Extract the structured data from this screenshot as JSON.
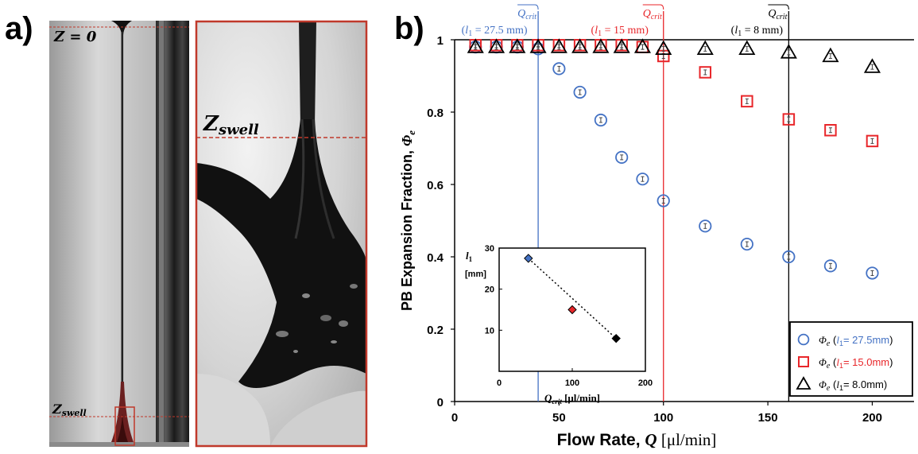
{
  "panel_labels": {
    "a": "a)",
    "b": "b)"
  },
  "micrograph": {
    "z0_label": "Z = 0",
    "zswell_label": "Z",
    "zswell_sub": "swell",
    "zoom_label": "Z",
    "zoom_sub": "swell"
  },
  "chart_data": [
    {
      "type": "scatter",
      "title": "",
      "xlabel": "Flow Rate, Q [μl/min]",
      "ylabel": "PB Expansion Fraction, Φe",
      "xlim": [
        0,
        220
      ],
      "ylim": [
        0,
        1
      ],
      "xticks": [
        0,
        50,
        100,
        150,
        200
      ],
      "yticks": [
        0,
        0.2,
        0.4,
        0.6,
        0.8,
        1
      ],
      "legend_position": "bottom-right",
      "series": [
        {
          "name": "Φe (l1= 27.5mm)",
          "marker": "circle",
          "color": "#4472C4",
          "x": [
            10,
            20,
            30,
            40,
            50,
            60,
            70,
            80,
            90,
            100,
            120,
            140,
            160,
            180,
            200
          ],
          "y": [
            0.98,
            0.98,
            0.98,
            0.975,
            0.92,
            0.855,
            0.778,
            0.675,
            0.615,
            0.555,
            0.485,
            0.435,
            0.4,
            0.375,
            0.355
          ]
        },
        {
          "name": "Φe (l1= 15.0mm)",
          "marker": "square",
          "color": "#E8262A",
          "x": [
            10,
            20,
            30,
            40,
            50,
            60,
            70,
            80,
            90,
            100,
            120,
            140,
            160,
            180,
            200
          ],
          "y": [
            0.985,
            0.985,
            0.985,
            0.985,
            0.985,
            0.985,
            0.985,
            0.985,
            0.98,
            0.955,
            0.91,
            0.83,
            0.78,
            0.75,
            0.72
          ]
        },
        {
          "name": "Φe (l1= 8.0mm)",
          "marker": "triangle",
          "color": "#000000",
          "x": [
            10,
            20,
            30,
            40,
            50,
            60,
            70,
            80,
            90,
            100,
            120,
            140,
            160,
            180,
            200
          ],
          "y": [
            0.98,
            0.98,
            0.98,
            0.98,
            0.98,
            0.98,
            0.98,
            0.98,
            0.98,
            0.975,
            0.975,
            0.975,
            0.965,
            0.955,
            0.925
          ]
        }
      ],
      "reference_lines": [
        {
          "x": 40,
          "color": "#4472C4",
          "label": "Qcrit",
          "sublabel": "(l1 = 27.5 mm)"
        },
        {
          "x": 100,
          "color": "#E8262A",
          "label": "Qcrit",
          "sublabel": "(l1 = 15 mm)"
        },
        {
          "x": 160,
          "color": "#000000",
          "label": "Qcrit",
          "sublabel": "(l1 = 8 mm)"
        }
      ],
      "hline": {
        "y": 1,
        "color": "#000000"
      }
    },
    {
      "type": "scatter",
      "title": "",
      "xlabel": "Qcrit [μl/min]",
      "ylabel": "l1 [mm]",
      "xlim": [
        0,
        200
      ],
      "ylim": [
        0,
        30
      ],
      "xticks": [
        0,
        100,
        200
      ],
      "yticks": [
        10,
        20,
        30
      ],
      "points": [
        {
          "x": 40,
          "y": 27.5,
          "color": "#4472C4"
        },
        {
          "x": 100,
          "y": 15,
          "color": "#E8262A"
        },
        {
          "x": 160,
          "y": 8,
          "color": "#000000"
        }
      ],
      "trend": "dotted"
    }
  ]
}
